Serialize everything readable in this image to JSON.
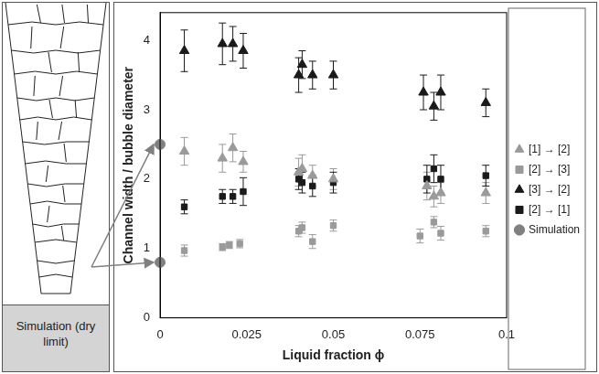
{
  "side_panel": {
    "caption": "Simulation (dry limit)"
  },
  "chart_data": {
    "type": "scatter",
    "x_label": "Liquid fraction ϕ",
    "y_label": "Channel width / bubble diameter",
    "xlim": [
      0,
      0.1
    ],
    "xticks": [
      0,
      0.025,
      0.05,
      0.075,
      0.1
    ],
    "ylim": [
      0,
      4.4
    ],
    "yticks": [
      0,
      1,
      2,
      3,
      4
    ],
    "grid": false,
    "legend": "right",
    "series": [
      {
        "name": "[1] → [2]",
        "color": "#9a9a9a",
        "marker": "triangle",
        "x": [
          0.007,
          0.018,
          0.021,
          0.024,
          0.04,
          0.041,
          0.044,
          0.05,
          0.077,
          0.079,
          0.081,
          0.094
        ],
        "values": [
          2.4,
          2.3,
          2.45,
          2.25,
          2.1,
          2.15,
          2.05,
          2.0,
          1.9,
          1.75,
          1.8,
          1.8
        ],
        "errors": [
          0.2,
          0.2,
          0.2,
          0.15,
          0.2,
          0.2,
          0.15,
          0.15,
          0.2,
          0.15,
          0.15,
          0.15
        ]
      },
      {
        "name": "[2] → [3]",
        "color": "#9a9a9a",
        "marker": "square",
        "x": [
          0.007,
          0.018,
          0.02,
          0.023,
          0.04,
          0.041,
          0.044,
          0.05,
          0.075,
          0.079,
          0.081,
          0.094
        ],
        "values": [
          0.97,
          1.02,
          1.05,
          1.07,
          1.25,
          1.3,
          1.1,
          1.33,
          1.18,
          1.38,
          1.22,
          1.25
        ],
        "errors": [
          0.08,
          0.05,
          0.05,
          0.06,
          0.08,
          0.08,
          0.1,
          0.08,
          0.1,
          0.08,
          0.1,
          0.08
        ]
      },
      {
        "name": "[3] → [2]",
        "color": "#1a1a1a",
        "marker": "triangle",
        "x": [
          0.007,
          0.018,
          0.021,
          0.024,
          0.04,
          0.041,
          0.044,
          0.05,
          0.076,
          0.079,
          0.081,
          0.094
        ],
        "values": [
          3.85,
          3.95,
          3.95,
          3.85,
          3.5,
          3.65,
          3.5,
          3.5,
          3.25,
          3.05,
          3.25,
          3.1
        ],
        "errors": [
          0.3,
          0.3,
          0.25,
          0.25,
          0.25,
          0.2,
          0.2,
          0.2,
          0.25,
          0.2,
          0.25,
          0.2
        ]
      },
      {
        "name": "[2] → [1]",
        "color": "#1a1a1a",
        "marker": "square",
        "x": [
          0.007,
          0.018,
          0.021,
          0.024,
          0.04,
          0.041,
          0.044,
          0.05,
          0.077,
          0.079,
          0.081,
          0.094
        ],
        "values": [
          1.6,
          1.75,
          1.75,
          1.82,
          2.0,
          1.95,
          1.9,
          1.95,
          2.0,
          2.15,
          2.0,
          2.05
        ],
        "errors": [
          0.1,
          0.1,
          0.1,
          0.2,
          0.15,
          0.15,
          0.15,
          0.15,
          0.2,
          0.2,
          0.2,
          0.15
        ]
      },
      {
        "name": "Simulation",
        "color": "#808080",
        "marker": "circle",
        "x": [
          0,
          0
        ],
        "values": [
          2.5,
          0.8
        ]
      }
    ]
  }
}
